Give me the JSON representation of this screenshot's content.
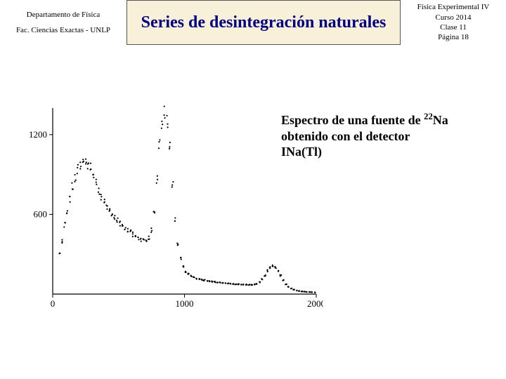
{
  "header": {
    "left_line1": "Departamento de Física",
    "left_line2": "Fac. Ciencias Exactas - UNLP",
    "center_title": "Series de desintegración naturales",
    "right_line1": "Física Experimental IV",
    "right_line2": "Curso 2014",
    "right_line3": "Clase 11",
    "right_line4": "Página 18"
  },
  "caption": {
    "pre": "Espectro de una fuente de ",
    "sup": "22",
    "post": "Na obtenido con el detector INa(Tl)"
  },
  "chart": {
    "type": "scatter-spectrum",
    "background_color": "#ffffff",
    "axis_color": "#000000",
    "point_color": "#000000",
    "point_radius": 1.1,
    "xlim": [
      0,
      2000
    ],
    "ylim": [
      0,
      1400
    ],
    "xticks": [
      {
        "v": 0,
        "l": "0"
      },
      {
        "v": 1000,
        "l": "1000"
      },
      {
        "v": 2000,
        "l": "2000"
      }
    ],
    "yticks": [
      {
        "v": 600,
        "l": "600"
      },
      {
        "v": 1200,
        "l": "1200"
      }
    ],
    "tick_len": 5,
    "label_fontsize": 13,
    "xmin_pad": 50,
    "series": [
      {
        "x": 50,
        "y": 300
      },
      {
        "x": 70,
        "y": 400
      },
      {
        "x": 90,
        "y": 520
      },
      {
        "x": 110,
        "y": 610
      },
      {
        "x": 130,
        "y": 720
      },
      {
        "x": 150,
        "y": 810
      },
      {
        "x": 170,
        "y": 880
      },
      {
        "x": 190,
        "y": 940
      },
      {
        "x": 210,
        "y": 970
      },
      {
        "x": 230,
        "y": 990
      },
      {
        "x": 250,
        "y": 995
      },
      {
        "x": 270,
        "y": 980
      },
      {
        "x": 290,
        "y": 950
      },
      {
        "x": 310,
        "y": 900
      },
      {
        "x": 330,
        "y": 840
      },
      {
        "x": 350,
        "y": 780
      },
      {
        "x": 370,
        "y": 730
      },
      {
        "x": 390,
        "y": 690
      },
      {
        "x": 410,
        "y": 660
      },
      {
        "x": 430,
        "y": 630
      },
      {
        "x": 450,
        "y": 605
      },
      {
        "x": 470,
        "y": 580
      },
      {
        "x": 490,
        "y": 555
      },
      {
        "x": 510,
        "y": 530
      },
      {
        "x": 530,
        "y": 510
      },
      {
        "x": 550,
        "y": 495
      },
      {
        "x": 570,
        "y": 480
      },
      {
        "x": 590,
        "y": 465
      },
      {
        "x": 610,
        "y": 450
      },
      {
        "x": 630,
        "y": 435
      },
      {
        "x": 650,
        "y": 420
      },
      {
        "x": 670,
        "y": 408
      },
      {
        "x": 690,
        "y": 400
      },
      {
        "x": 710,
        "y": 400
      },
      {
        "x": 730,
        "y": 420
      },
      {
        "x": 750,
        "y": 480
      },
      {
        "x": 770,
        "y": 620
      },
      {
        "x": 790,
        "y": 870
      },
      {
        "x": 810,
        "y": 1120
      },
      {
        "x": 830,
        "y": 1300
      },
      {
        "x": 850,
        "y": 1360
      },
      {
        "x": 870,
        "y": 1300
      },
      {
        "x": 890,
        "y": 1100
      },
      {
        "x": 910,
        "y": 820
      },
      {
        "x": 930,
        "y": 560
      },
      {
        "x": 950,
        "y": 380
      },
      {
        "x": 970,
        "y": 270
      },
      {
        "x": 990,
        "y": 210
      },
      {
        "x": 1010,
        "y": 170
      },
      {
        "x": 1030,
        "y": 150
      },
      {
        "x": 1050,
        "y": 135
      },
      {
        "x": 1070,
        "y": 125
      },
      {
        "x": 1090,
        "y": 118
      },
      {
        "x": 1110,
        "y": 112
      },
      {
        "x": 1130,
        "y": 108
      },
      {
        "x": 1150,
        "y": 104
      },
      {
        "x": 1170,
        "y": 100
      },
      {
        "x": 1190,
        "y": 97
      },
      {
        "x": 1210,
        "y": 94
      },
      {
        "x": 1230,
        "y": 91
      },
      {
        "x": 1250,
        "y": 88
      },
      {
        "x": 1270,
        "y": 86
      },
      {
        "x": 1290,
        "y": 84
      },
      {
        "x": 1310,
        "y": 82
      },
      {
        "x": 1330,
        "y": 80
      },
      {
        "x": 1350,
        "y": 78
      },
      {
        "x": 1370,
        "y": 76
      },
      {
        "x": 1390,
        "y": 75
      },
      {
        "x": 1410,
        "y": 74
      },
      {
        "x": 1430,
        "y": 73
      },
      {
        "x": 1450,
        "y": 72
      },
      {
        "x": 1470,
        "y": 71
      },
      {
        "x": 1490,
        "y": 70
      },
      {
        "x": 1510,
        "y": 70
      },
      {
        "x": 1530,
        "y": 72
      },
      {
        "x": 1550,
        "y": 78
      },
      {
        "x": 1570,
        "y": 90
      },
      {
        "x": 1590,
        "y": 110
      },
      {
        "x": 1610,
        "y": 140
      },
      {
        "x": 1630,
        "y": 175
      },
      {
        "x": 1650,
        "y": 200
      },
      {
        "x": 1670,
        "y": 210
      },
      {
        "x": 1690,
        "y": 200
      },
      {
        "x": 1710,
        "y": 175
      },
      {
        "x": 1730,
        "y": 140
      },
      {
        "x": 1750,
        "y": 105
      },
      {
        "x": 1770,
        "y": 75
      },
      {
        "x": 1790,
        "y": 55
      },
      {
        "x": 1810,
        "y": 42
      },
      {
        "x": 1830,
        "y": 33
      },
      {
        "x": 1850,
        "y": 27
      },
      {
        "x": 1870,
        "y": 23
      },
      {
        "x": 1890,
        "y": 20
      },
      {
        "x": 1910,
        "y": 18
      },
      {
        "x": 1930,
        "y": 16
      },
      {
        "x": 1950,
        "y": 15
      },
      {
        "x": 1970,
        "y": 14
      },
      {
        "x": 1990,
        "y": 13
      }
    ],
    "noise": 0.04
  }
}
